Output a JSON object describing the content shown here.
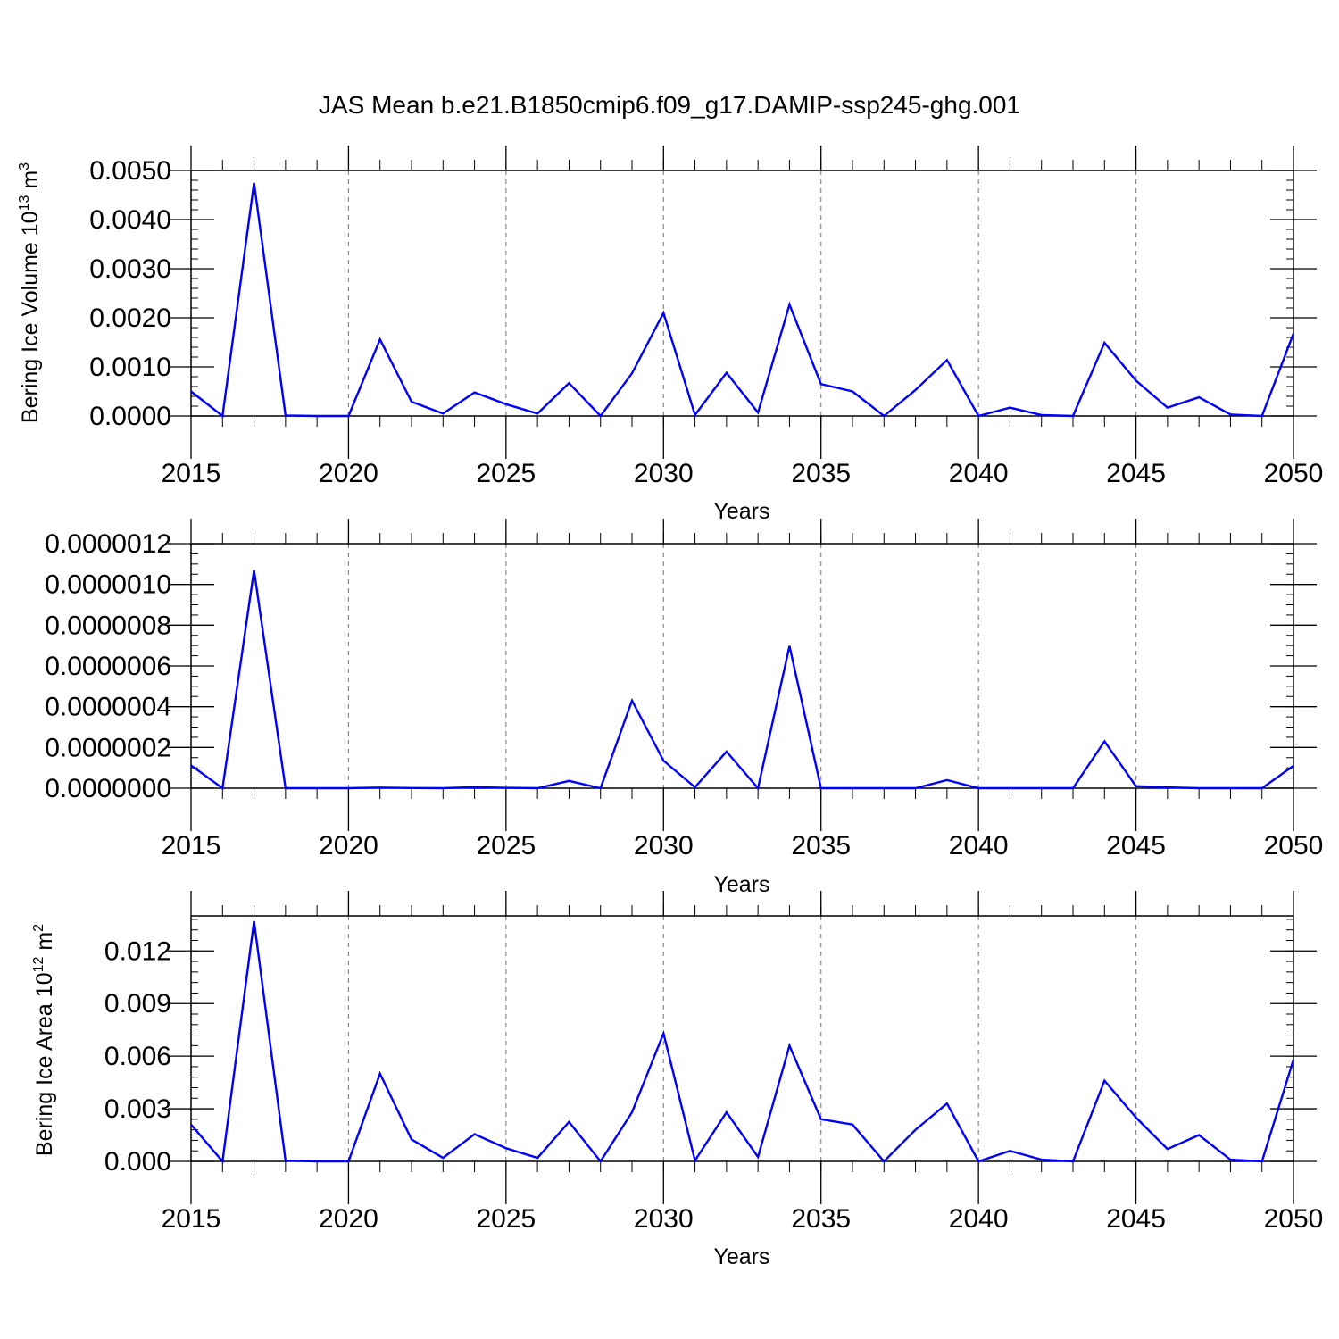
{
  "title": "JAS Mean b.e21.B1850cmip6.f09_g17.DAMIP-ssp245-ghg.001",
  "line_color": "#0000ff",
  "chart_data": [
    {
      "type": "line",
      "ylabel": "Bering Ice Volume 10",
      "ylabel_sup": "13",
      "ylabel_unit": "m",
      "ylabel_unit_sup": "3",
      "xlabel": "Years",
      "xlim": [
        2015,
        2050
      ],
      "ylim": [
        0.0,
        0.005
      ],
      "y_ticks": [
        0.0,
        0.001,
        0.002,
        0.003,
        0.004,
        0.005
      ],
      "y_tick_labels": [
        "0.0000",
        "0.0010",
        "0.0020",
        "0.0030",
        "0.0040",
        "0.0050"
      ],
      "y_minor_step": 0.0002,
      "x_ticks": [
        2015,
        2020,
        2025,
        2030,
        2035,
        2040,
        2045,
        2050
      ],
      "x_tick_labels": [
        "2015",
        "2020",
        "2025",
        "2030",
        "2035",
        "2040",
        "2045",
        "2050"
      ],
      "x": [
        2015,
        2016,
        2017,
        2018,
        2019,
        2020,
        2021,
        2022,
        2023,
        2024,
        2025,
        2026,
        2027,
        2028,
        2029,
        2030,
        2031,
        2032,
        2033,
        2034,
        2035,
        2036,
        2037,
        2038,
        2039,
        2040,
        2041,
        2042,
        2043,
        2044,
        2045,
        2046,
        2047,
        2048,
        2049,
        2050
      ],
      "values": [
        0.0005,
        0.0,
        0.00475,
        1e-05,
        0.0,
        0.0,
        0.00156,
        0.00029,
        5e-05,
        0.00048,
        0.00024,
        5e-05,
        0.00067,
        0.0,
        0.00087,
        0.0021,
        2e-05,
        0.00088,
        7e-05,
        0.00227,
        0.00065,
        0.0005,
        0.0,
        0.00053,
        0.00114,
        0.0,
        0.00017,
        2e-05,
        0.0,
        0.00149,
        0.00072,
        0.00017,
        0.00038,
        3e-05,
        0.0,
        0.00168
      ]
    },
    {
      "type": "line",
      "ylabel": "",
      "xlabel": "Years",
      "xlim": [
        2015,
        2050
      ],
      "ylim": [
        0.0,
        1.2e-06
      ],
      "y_ticks": [
        0.0,
        2e-07,
        4e-07,
        6e-07,
        8e-07,
        1e-06,
        1.2e-06
      ],
      "y_tick_labels": [
        "0.0000000",
        "0.0000002",
        "0.0000004",
        "0.0000006",
        "0.0000008",
        "0.0000010",
        "0.0000012"
      ],
      "y_minor_step": 5e-08,
      "x_ticks": [
        2015,
        2020,
        2025,
        2030,
        2035,
        2040,
        2045,
        2050
      ],
      "x_tick_labels": [
        "2015",
        "2020",
        "2025",
        "2030",
        "2035",
        "2040",
        "2045",
        "2050"
      ],
      "x": [
        2015,
        2016,
        2017,
        2018,
        2019,
        2020,
        2021,
        2022,
        2023,
        2024,
        2025,
        2026,
        2027,
        2028,
        2029,
        2030,
        2031,
        2032,
        2033,
        2034,
        2035,
        2036,
        2037,
        2038,
        2039,
        2040,
        2041,
        2042,
        2043,
        2044,
        2045,
        2046,
        2047,
        2048,
        2049,
        2050
      ],
      "values": [
        1.12e-07,
        0.0,
        1.07e-06,
        0.0,
        0.0,
        0.0,
        3e-09,
        1e-09,
        0.0,
        5e-09,
        2e-09,
        0.0,
        3.6e-08,
        0.0,
        4.3e-07,
        1.35e-07,
        5e-09,
        1.8e-07,
        0.0,
        6.98e-07,
        0.0,
        0.0,
        0.0,
        0.0,
        4e-08,
        0.0,
        0.0,
        0.0,
        0.0,
        2.3e-07,
        1e-08,
        4e-09,
        0.0,
        0.0,
        0.0,
        1.1e-07
      ]
    },
    {
      "type": "line",
      "ylabel": "Bering Ice Area 10",
      "ylabel_sup": "12",
      "ylabel_unit": "m",
      "ylabel_unit_sup": "2",
      "xlabel": "Years",
      "xlim": [
        2015,
        2050
      ],
      "ylim": [
        0.0,
        0.014
      ],
      "y_ticks": [
        0.0,
        0.003,
        0.006,
        0.009,
        0.012
      ],
      "y_tick_labels": [
        "0.000",
        "0.003",
        "0.006",
        "0.009",
        "0.012"
      ],
      "y_minor_step": 0.0006,
      "x_ticks": [
        2015,
        2020,
        2025,
        2030,
        2035,
        2040,
        2045,
        2050
      ],
      "x_tick_labels": [
        "2015",
        "2020",
        "2025",
        "2030",
        "2035",
        "2040",
        "2045",
        "2050"
      ],
      "x": [
        2015,
        2016,
        2017,
        2018,
        2019,
        2020,
        2021,
        2022,
        2023,
        2024,
        2025,
        2026,
        2027,
        2028,
        2029,
        2030,
        2031,
        2032,
        2033,
        2034,
        2035,
        2036,
        2037,
        2038,
        2039,
        2040,
        2041,
        2042,
        2043,
        2044,
        2045,
        2046,
        2047,
        2048,
        2049,
        2050
      ],
      "values": [
        0.0021,
        0.0,
        0.0137,
        5e-05,
        0.0,
        0.0,
        0.005,
        0.00125,
        0.0002,
        0.00155,
        0.00075,
        0.0002,
        0.00225,
        0.0,
        0.0028,
        0.0073,
        5e-05,
        0.0028,
        0.00025,
        0.0066,
        0.0024,
        0.0021,
        0.0,
        0.0018,
        0.0033,
        0.0,
        0.0006,
        0.0001,
        0.0,
        0.0046,
        0.0025,
        0.0007,
        0.0015,
        0.0001,
        0.0,
        0.0058
      ]
    }
  ]
}
